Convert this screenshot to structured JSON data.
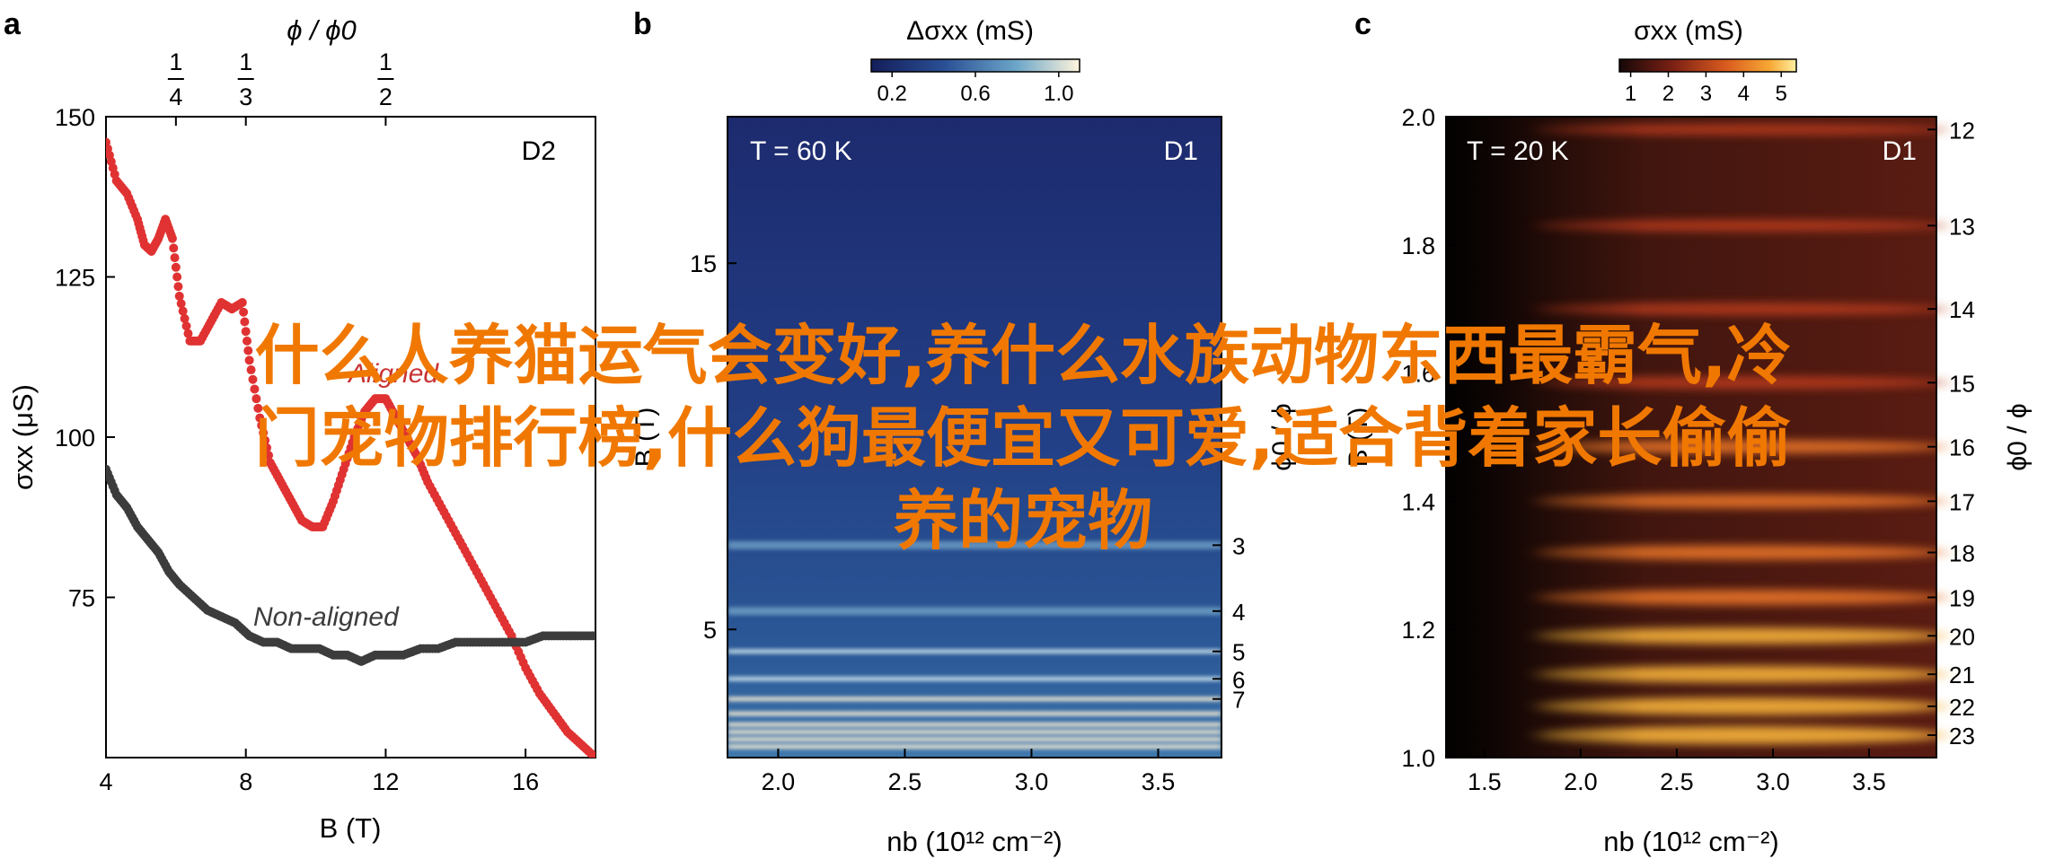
{
  "panels": [
    {
      "letter": "a",
      "tag": "D2",
      "chart_data": {
        "type": "scatter",
        "xlabel": "B (T)",
        "ylabel": "σxx (μS)",
        "top_axis_label": "ϕ / ϕ0",
        "top_ticks": [
          "1/4",
          "1/3",
          "1/2"
        ],
        "top_tick_B": [
          6.0,
          8.0,
          12.0
        ],
        "xlim": [
          4,
          18
        ],
        "ylim": [
          50,
          150
        ],
        "xticks": [
          4,
          8,
          12,
          16
        ],
        "yticks": [
          75,
          100,
          125,
          150
        ],
        "series": [
          {
            "name": "Aligned",
            "color": "#e03232",
            "x": [
              4.0,
              4.3,
              4.6,
              4.9,
              5.1,
              5.3,
              5.5,
              5.7,
              5.9,
              6.1,
              6.4,
              6.7,
              7.0,
              7.3,
              7.6,
              7.9,
              8.1,
              8.4,
              8.7,
              9.0,
              9.3,
              9.6,
              9.9,
              10.2,
              10.5,
              10.8,
              11.1,
              11.4,
              11.7,
              12.0,
              12.3,
              12.6,
              12.9,
              13.2,
              13.6,
              14.0,
              14.4,
              14.8,
              15.2,
              15.6,
              16.0,
              16.4,
              16.8,
              17.2,
              17.6,
              18.0
            ],
            "y": [
              146,
              140,
              138,
              134,
              130,
              129,
              131,
              134,
              131,
              122,
              115,
              115,
              118,
              121,
              120,
              121,
              112,
              103,
              96,
              93,
              90,
              87,
              86,
              86,
              90,
              95,
              100,
              104,
              106,
              106,
              103,
              100,
              97,
              93,
              89,
              85,
              81,
              77,
              73,
              69,
              64,
              60,
              57,
              54,
              52,
              50
            ]
          },
          {
            "name": "Non-aligned",
            "color": "#3c3c3c",
            "x": [
              4.0,
              4.3,
              4.6,
              4.9,
              5.2,
              5.5,
              5.8,
              6.1,
              6.5,
              6.9,
              7.3,
              7.7,
              8.1,
              8.5,
              8.9,
              9.3,
              9.7,
              10.1,
              10.5,
              10.9,
              11.3,
              11.7,
              12.1,
              12.5,
              13.0,
              13.5,
              14.0,
              14.5,
              15.0,
              15.5,
              16.0,
              16.5,
              17.0,
              17.5,
              18.0
            ],
            "y": [
              95,
              91,
              89,
              86,
              84,
              82,
              79,
              77,
              75,
              73,
              72,
              71,
              69,
              68,
              68,
              67,
              67,
              67,
              66,
              66,
              65,
              66,
              66,
              66,
              67,
              67,
              68,
              68,
              68,
              68,
              68,
              69,
              69,
              69,
              69
            ]
          }
        ],
        "annotations": [
          "Aligned",
          "Non-aligned"
        ]
      }
    },
    {
      "letter": "b",
      "tag": "D1",
      "temp_label": "T = 60 K",
      "chart_data": {
        "type": "heatmap",
        "xlabel": "nb (10¹² cm⁻²)",
        "ylabel": "B (T)",
        "right_label": "ϕ0 / ϕ",
        "colorbar_label": "Δσxx (mS)",
        "colorbar_ticks": [
          "0.2",
          "0.6",
          "1.0"
        ],
        "colorbar_range": [
          0.1,
          1.1
        ],
        "xlim": [
          1.8,
          3.75
        ],
        "ylim": [
          1.5,
          19
        ],
        "xticks": [
          2.0,
          2.5,
          3.0,
          3.5
        ],
        "yticks": [
          5,
          15
        ],
        "right_ticks": [
          "3",
          "4",
          "5",
          "6",
          "7"
        ],
        "right_tick_B": [
          7.3,
          5.5,
          4.4,
          3.65,
          3.1
        ],
        "stripe_B": [
          7.3,
          5.5,
          4.4,
          3.65,
          3.1,
          2.7,
          2.4,
          2.2,
          2.0,
          1.8
        ]
      }
    },
    {
      "letter": "c",
      "tag": "D1",
      "temp_label": "T = 20 K",
      "chart_data": {
        "type": "heatmap",
        "xlabel": "nb (10¹² cm⁻²)",
        "ylabel": "B (T)",
        "right_label": "ϕ0 / ϕ",
        "colorbar_label": "σxx (mS)",
        "colorbar_ticks": [
          "1",
          "2",
          "3",
          "4",
          "5"
        ],
        "colorbar_range": [
          0.7,
          5.4
        ],
        "xlim": [
          1.3,
          3.85
        ],
        "ylim": [
          1.0,
          2.0
        ],
        "xticks": [
          1.5,
          2.0,
          2.5,
          3.0,
          3.5
        ],
        "yticks": [
          1.0,
          1.2,
          1.4,
          1.6,
          1.8,
          2.0
        ],
        "right_ticks": [
          "12",
          "13",
          "14",
          "15",
          "16",
          "17",
          "18",
          "19",
          "20",
          "21",
          "22",
          "23"
        ],
        "right_tick_B": [
          1.98,
          1.83,
          1.7,
          1.585,
          1.485,
          1.4,
          1.32,
          1.25,
          1.19,
          1.13,
          1.08,
          1.035
        ]
      }
    }
  ],
  "overlay_lines": [
    "什么人养猫运气会变好,养什么水族动物东西最霸气,冷",
    "门宠物排行榜,什么狗最便宜又可爱,适合背着家长偷偷",
    "养的宠物"
  ]
}
